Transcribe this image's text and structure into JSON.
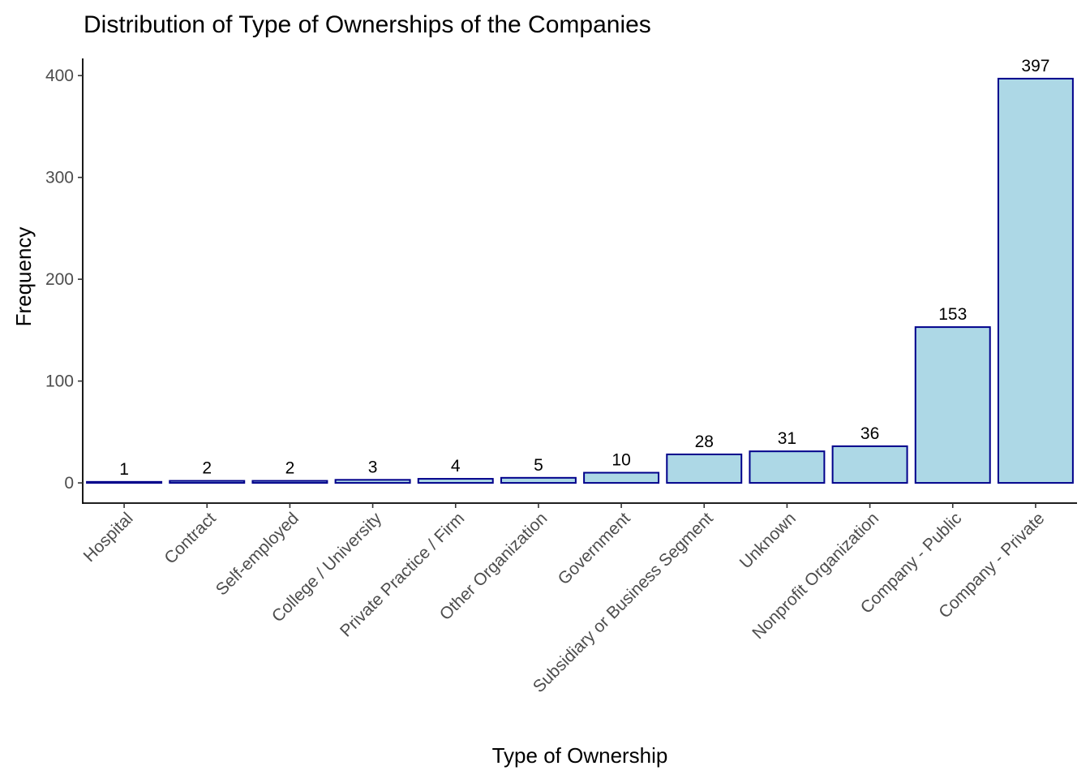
{
  "chart_data": {
    "type": "bar",
    "title": "Distribution of Type of Ownerships of the Companies",
    "xlabel": "Type of Ownership",
    "ylabel": "Frequency",
    "categories": [
      "Hospital",
      "Contract",
      "Self-employed",
      "College / University",
      "Private Practice / Firm",
      "Other Organization",
      "Government",
      "Subsidiary or Business Segment",
      "Unknown",
      "Nonprofit Organization",
      "Company - Public",
      "Company - Private"
    ],
    "values": [
      1,
      2,
      2,
      3,
      4,
      5,
      10,
      28,
      31,
      36,
      153,
      397
    ],
    "ylim": [
      -19.85,
      416.85
    ],
    "yticks": [
      0,
      100,
      200,
      300,
      400
    ],
    "grid": false,
    "legend": "none",
    "bar_fill": "#add8e6",
    "bar_stroke": "#00008b"
  }
}
